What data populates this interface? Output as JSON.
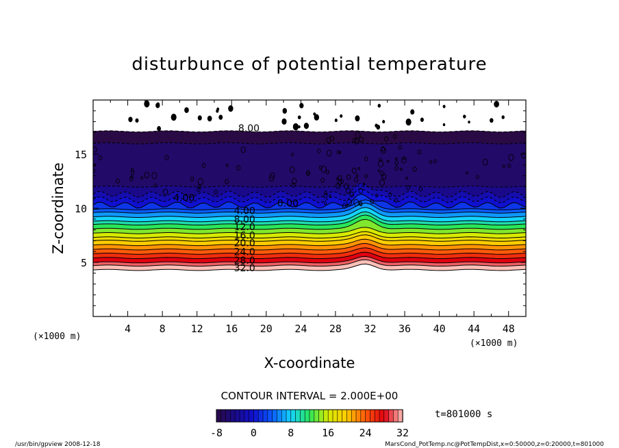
{
  "chart_data": {
    "type": "contour",
    "title": "disturbunce of potential temperature",
    "xlabel": "X-coordinate",
    "ylabel": "Z-coordinate",
    "x_unit_left": "(×1000 m)",
    "x_unit_right": "(×1000 m)",
    "xlim": [
      0,
      50
    ],
    "ylim": [
      0,
      20
    ],
    "xticks": [
      4,
      8,
      12,
      16,
      20,
      24,
      28,
      32,
      36,
      40,
      44,
      48
    ],
    "yticks": [
      5,
      10,
      15
    ],
    "contour_interval_text": "CONTOUR INTERVAL = 2.000E+00",
    "contour_interval": 2.0,
    "time_text": "t=801000 s",
    "colorbar": {
      "min": -8,
      "max": 32,
      "tick_labels": [
        "-8",
        "0",
        "8",
        "16",
        "24",
        "32"
      ],
      "tick_values": [
        -8,
        0,
        8,
        16,
        24,
        32
      ]
    },
    "contour_labels": [
      {
        "text": "8.00",
        "x": 18,
        "z": 17.2
      },
      {
        "text": "4.00",
        "x": 10.5,
        "z": 10.8
      },
      {
        "text": "0.00",
        "x": 22.5,
        "z": 10.3
      },
      {
        "text": "4.00",
        "x": 17.5,
        "z": 9.6
      },
      {
        "text": "8.00",
        "x": 17.5,
        "z": 8.8
      },
      {
        "text": "12.0",
        "x": 17.5,
        "z": 8.1
      },
      {
        "text": "16.0",
        "x": 17.5,
        "z": 7.3
      },
      {
        "text": "20.0",
        "x": 17.5,
        "z": 6.6
      },
      {
        "text": "24.0",
        "x": 17.5,
        "z": 5.8
      },
      {
        "text": "28.0",
        "x": 17.5,
        "z": 5.0
      },
      {
        "text": "32.0",
        "x": 17.5,
        "z": 4.3
      }
    ],
    "field_bands": [
      {
        "z_from": 17.1,
        "z_to": 16.0,
        "value": -8
      },
      {
        "z_from": 16.0,
        "z_to": 12.0,
        "value": -6
      },
      {
        "z_from": 12.0,
        "z_to": 11.3,
        "value": -4
      },
      {
        "z_from": 11.3,
        "z_to": 10.8,
        "value": -2
      },
      {
        "z_from": 10.8,
        "z_to": 10.3,
        "value": 0
      },
      {
        "z_from": 10.3,
        "z_to": 9.9,
        "value": 2
      },
      {
        "z_from": 9.9,
        "z_to": 9.6,
        "value": 4
      },
      {
        "z_from": 9.6,
        "z_to": 9.2,
        "value": 6
      },
      {
        "z_from": 9.2,
        "z_to": 8.8,
        "value": 8
      },
      {
        "z_from": 8.8,
        "z_to": 8.5,
        "value": 10
      },
      {
        "z_from": 8.5,
        "z_to": 8.1,
        "value": 12
      },
      {
        "z_from": 8.1,
        "z_to": 7.7,
        "value": 14
      },
      {
        "z_from": 7.7,
        "z_to": 7.3,
        "value": 16
      },
      {
        "z_from": 7.3,
        "z_to": 7.0,
        "value": 18
      },
      {
        "z_from": 7.0,
        "z_to": 6.6,
        "value": 20
      },
      {
        "z_from": 6.6,
        "z_to": 6.2,
        "value": 22
      },
      {
        "z_from": 6.2,
        "z_to": 5.8,
        "value": 24
      },
      {
        "z_from": 5.8,
        "z_to": 5.4,
        "value": 26
      },
      {
        "z_from": 5.4,
        "z_to": 5.0,
        "value": 28
      },
      {
        "z_from": 5.0,
        "z_to": 4.7,
        "value": 30
      },
      {
        "z_from": 4.7,
        "z_to": 4.3,
        "value": 32
      }
    ]
  },
  "footer": {
    "left": "/usr/bin/gpview   2008-12-18",
    "right": "MarsCond_PotTemp.nc@PotTempDist,x=0:50000,z=0:20000,t=801000"
  },
  "colors": {
    "background": "#ffffff",
    "axis": "#000000",
    "colormap_stops": [
      "#2a0a45",
      "#1a0a8a",
      "#1010d0",
      "#0a5cff",
      "#14d4ff",
      "#2ae65a",
      "#d8ea00",
      "#ffcc00",
      "#ff5a0a",
      "#e00010",
      "#ffc0b8"
    ]
  }
}
